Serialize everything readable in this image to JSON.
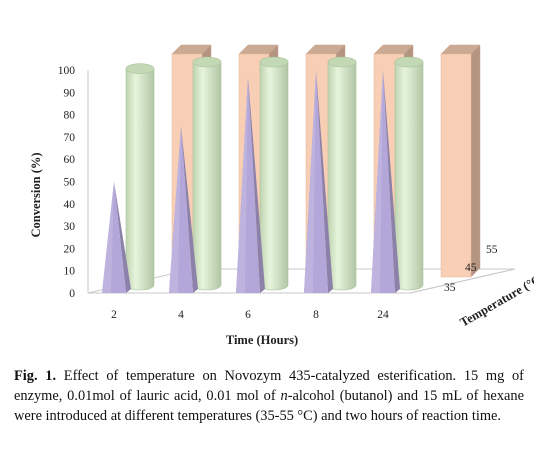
{
  "chart_data": {
    "type": "bar",
    "subtype": "3d-grouped",
    "categories": [
      "2",
      "4",
      "6",
      "8",
      "24"
    ],
    "series": [
      {
        "name": "35",
        "shape": "pyramid",
        "color": "#b3a6d9",
        "values": [
          50,
          75,
          97,
          100,
          100
        ]
      },
      {
        "name": "45",
        "shape": "cylinder",
        "color": "#d9f0c9",
        "values": [
          97,
          100,
          100,
          100,
          100
        ]
      },
      {
        "name": "55",
        "shape": "box",
        "color": "#f8cfb4",
        "values": [
          100,
          100,
          100,
          100,
          100
        ]
      }
    ],
    "xlabel": "Time (Hours)",
    "ylabel": "Conversion (%)",
    "zlabel": "Temperature (°C)",
    "yticks": [
      0,
      10,
      20,
      30,
      40,
      50,
      60,
      70,
      80,
      90,
      100
    ],
    "ylim": [
      0,
      100
    ],
    "grid": false
  },
  "caption": {
    "label": "Fig. 1.",
    "text_a": " Effect of temperature on Novozym 435-catalyzed esterification. 15 mg of enzyme, 0.01mol of lauric acid, 0.01 mol of ",
    "text_italic": "n",
    "text_b": "-alcohol (butanol) and 15 mL of hexane were introduced at different temperatures (35-55 °C) and two hours of reaction time."
  }
}
